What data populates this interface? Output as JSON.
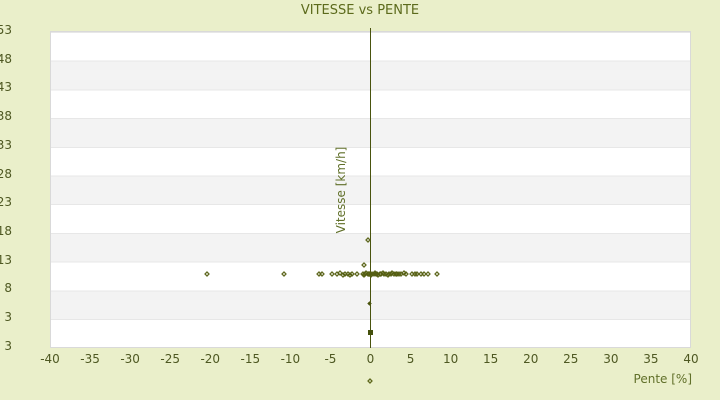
{
  "title": "VITESSE vs PENTE",
  "colors": {
    "page_background": "#eaefca",
    "band_white": "#ffffff",
    "band_gray": "#f3f3f3",
    "plot_border": "#d9d9d9",
    "axis_line": "#49530e",
    "text_olive": "#5c6a1c",
    "tick_text": "#4e5822",
    "marker": "#555f12"
  },
  "chart_data": {
    "type": "scatter",
    "title": "VITESSE vs PENTE",
    "xlabel": "Pente [%]",
    "ylabel": "Vitesse [km/h]",
    "xlim": [
      -40,
      40
    ],
    "ylim": [
      -2.4,
      53
    ],
    "x_tick_values": [
      -40,
      -35,
      -30,
      -25,
      -20,
      -15,
      -10,
      -5,
      0,
      5,
      10,
      15,
      20,
      25,
      30,
      35,
      40
    ],
    "y_tick_labels": [
      "53",
      "48",
      "43",
      "38",
      "33",
      "28",
      "23",
      "18",
      "13",
      "8",
      "3",
      "3"
    ],
    "y_tick_step": 5,
    "grid_bands": "horizontal alternating white/gray every 5 units",
    "legend": "none",
    "points": [
      [
        -20.4,
        10.4
      ],
      [
        -10.7,
        10.4
      ],
      [
        -6.4,
        10.4
      ],
      [
        -6.0,
        10.4
      ],
      [
        -4.8,
        10.4
      ],
      [
        -4.1,
        10.4
      ],
      [
        -3.8,
        10.6
      ],
      [
        -3.4,
        10.3
      ],
      [
        -3.1,
        10.4
      ],
      [
        -2.8,
        10.4
      ],
      [
        -2.5,
        10.3
      ],
      [
        -2.2,
        10.4
      ],
      [
        -1.6,
        10.4
      ],
      [
        -0.9,
        10.4
      ],
      [
        -0.75,
        10.3
      ],
      [
        -0.6,
        10.4
      ],
      [
        -0.45,
        10.5
      ],
      [
        -0.3,
        10.4
      ],
      [
        -0.15,
        10.4
      ],
      [
        0.0,
        10.4
      ],
      [
        0.15,
        10.3
      ],
      [
        0.3,
        10.4
      ],
      [
        0.45,
        10.4
      ],
      [
        0.6,
        10.5
      ],
      [
        0.75,
        10.4
      ],
      [
        0.9,
        10.4
      ],
      [
        1.05,
        10.3
      ],
      [
        1.2,
        10.4
      ],
      [
        1.4,
        10.4
      ],
      [
        1.6,
        10.5
      ],
      [
        1.8,
        10.4
      ],
      [
        2.0,
        10.4
      ],
      [
        2.2,
        10.3
      ],
      [
        2.4,
        10.4
      ],
      [
        2.6,
        10.4
      ],
      [
        2.8,
        10.5
      ],
      [
        3.0,
        10.4
      ],
      [
        3.2,
        10.4
      ],
      [
        3.4,
        10.4
      ],
      [
        3.6,
        10.4
      ],
      [
        3.9,
        10.4
      ],
      [
        4.2,
        10.5
      ],
      [
        4.5,
        10.4
      ],
      [
        5.3,
        10.4
      ],
      [
        5.6,
        10.4
      ],
      [
        5.9,
        10.4
      ],
      [
        6.4,
        10.4
      ],
      [
        6.8,
        10.4
      ],
      [
        7.2,
        10.4
      ],
      [
        8.3,
        10.4
      ],
      [
        -0.7,
        11.9
      ],
      [
        -0.3,
        16.4
      ]
    ],
    "special_points": [
      {
        "pente": 0,
        "vitesse": 5.1,
        "style": "tiny"
      },
      {
        "pente": 0,
        "vitesse": 0.3,
        "style": "sq"
      },
      {
        "pente": 0,
        "vitesse": -8.2,
        "style": "outlier-below-axis"
      }
    ]
  }
}
